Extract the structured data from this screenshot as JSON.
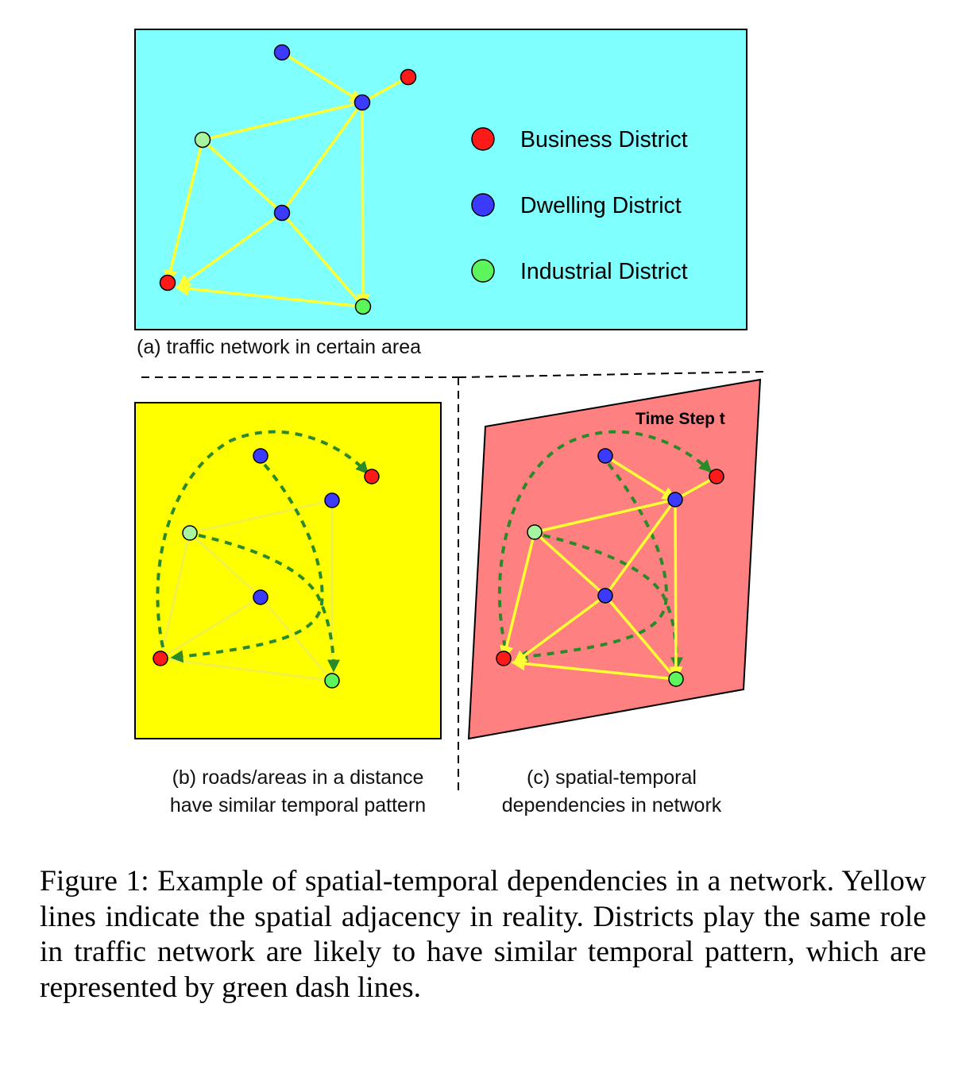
{
  "panel_a": {
    "caption": "(a) traffic network in certain area",
    "legend": [
      {
        "label": "Business District",
        "color": "#ff1a1a"
      },
      {
        "label": "Dwelling District",
        "color": "#3b3bff"
      },
      {
        "label": "Industrial District",
        "color": "#5cf55c"
      }
    ]
  },
  "panel_b": {
    "caption_line1": "(b) roads/areas in a distance",
    "caption_line2": "have similar temporal pattern"
  },
  "panel_c": {
    "title": "Time Step t",
    "caption_line1": "(c) spatial-temporal",
    "caption_line2": "dependencies in network"
  },
  "colors": {
    "panel_a_bg": "#80ffff",
    "panel_b_bg": "#ffff00",
    "panel_c_bg": "#ff8080",
    "road": "#ffff33",
    "dependency": "#2a8a2a",
    "business": "#ff1a1a",
    "dwelling": "#3b3bff",
    "industrial": "#5cf55c",
    "industrial_light": "#a8f5a0"
  },
  "figure_caption": "Figure 1: Example of spatial-temporal dependencies in a network. Yellow lines indicate the spatial adjacency in reality. Districts play the same role in traffic network are likely to have similar temporal pattern, which are represented by green dash lines."
}
